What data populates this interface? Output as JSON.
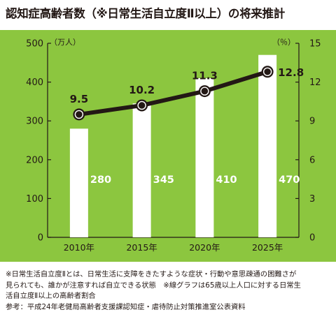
{
  "title": "認知症高齢者数（※日常生活自立度Ⅱ以上）の将来推計",
  "chart_data": {
    "type": "bar",
    "categories": [
      "2010年",
      "2015年",
      "2020年",
      "2025年"
    ],
    "series": [
      {
        "values": [
          280,
          345,
          410,
          470
        ]
      },
      {
        "values": [
          9.5,
          10.2,
          11.3,
          12.8
        ]
      }
    ],
    "left_axis": {
      "unit": "（万人）",
      "ylim": [
        0,
        500
      ],
      "ticks": [
        "0",
        "100",
        "200",
        "300",
        "400",
        "500"
      ]
    },
    "right_axis": {
      "unit": "（％）",
      "ylim": [
        0,
        15
      ],
      "ticks": [
        "0",
        "3",
        "6",
        "9",
        "12",
        "15"
      ]
    },
    "bar_labels": [
      "280",
      "345",
      "410",
      "470"
    ],
    "line_labels": [
      "9.5",
      "10.2",
      "11.3",
      "12.8"
    ],
    "colors": {
      "background": "#8CC63F",
      "bar": "#FFFFFF",
      "line": "#231815",
      "bar_label": "#FFFFFF"
    },
    "grid": false
  },
  "notes": {
    "line1": "※日常生活自立度Ⅱとは、日常生活に支障をきたすような症状・行動や意思疎通の困難さが",
    "line2": "見られても、誰かが注意すれば自立できる状態　※線グラフは65歳以上人口に対する日常生",
    "line3": "活自立度Ⅱ以上の高齢者割合",
    "line4": "参考：平成24年老健局高齢者支援課認知症・虐待防止対策推進室公表資料"
  }
}
